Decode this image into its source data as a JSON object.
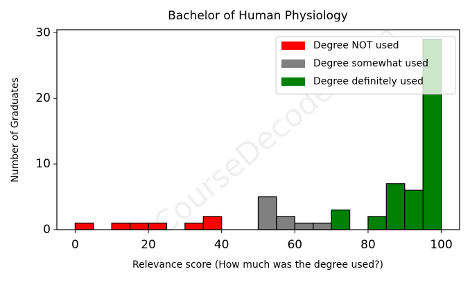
{
  "chart_data": {
    "type": "histogram",
    "title": "Bachelor of Human Physiology",
    "x_label": "Relevance score (How much was the degree used?)",
    "y_label": "Number of Graduates",
    "watermark": "CourseDecoder.com",
    "series": [
      {
        "name": "Degree NOT used",
        "color": "#ff0000",
        "bins": [
          0,
          5,
          10,
          15,
          20,
          25,
          30,
          35,
          40
        ],
        "values": [
          1,
          0,
          1,
          1,
          1,
          0,
          1,
          2
        ]
      },
      {
        "name": "Degree somewhat used",
        "color": "#808080",
        "bins": [
          50,
          55,
          60,
          65,
          70
        ],
        "values": [
          5,
          2,
          1,
          1
        ]
      },
      {
        "name": "Degree definitely used",
        "color": "#008000",
        "bins": [
          70,
          75,
          80,
          85,
          90,
          95,
          100
        ],
        "values": [
          3,
          0,
          2,
          7,
          6,
          29
        ]
      }
    ],
    "xlim": [
      -5,
      105
    ],
    "xticks": [
      0,
      20,
      40,
      60,
      80,
      100
    ],
    "ylim": [
      0,
      30.45
    ],
    "yticks": [
      0,
      10,
      20,
      30
    ],
    "legend": "upper right"
  }
}
